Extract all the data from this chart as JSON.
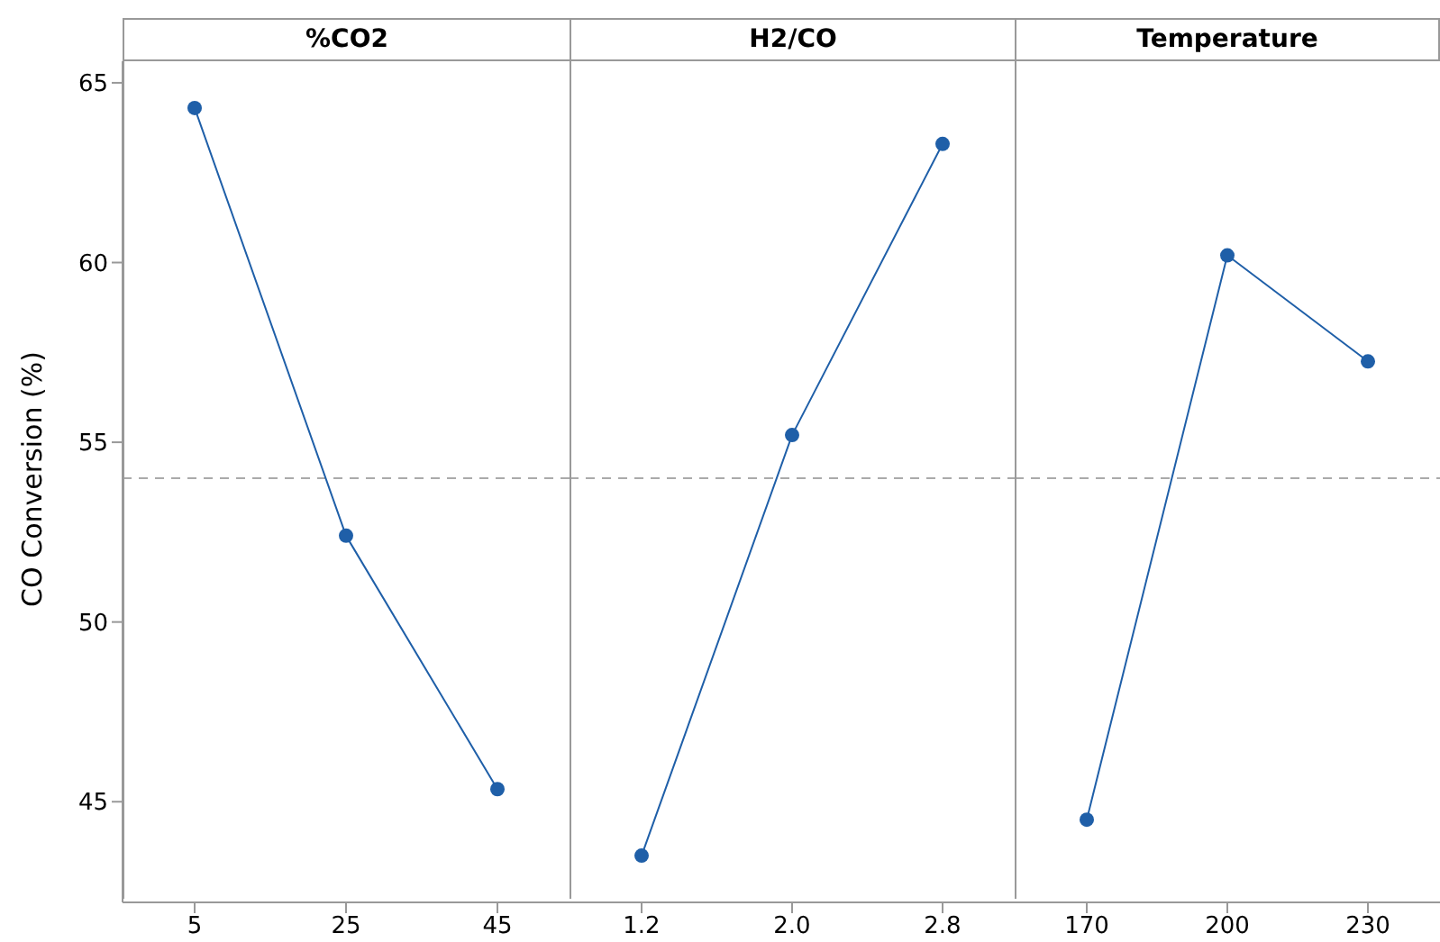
{
  "chart_data": [
    {
      "type": "line",
      "title": "%CO2",
      "ylabel": "CO Conversion (%)",
      "categories": [
        "5",
        "25",
        "45"
      ],
      "series": [
        {
          "color": "#1f5fa8",
          "values": [
            64.3,
            52.4,
            45.35
          ]
        }
      ],
      "ylim": [
        42.2,
        65.6
      ],
      "yticks": [
        45,
        50,
        55,
        60,
        65
      ],
      "ref_lines": [
        {
          "axis": "y",
          "value": 54.0,
          "color": "#aaaaaa",
          "line_style": "dashed"
        }
      ],
      "marker": "circle",
      "grid": false
    },
    {
      "type": "line",
      "title": "H2/CO",
      "categories": [
        "1.2",
        "2.0",
        "2.8"
      ],
      "series": [
        {
          "color": "#1f5fa8",
          "values": [
            43.5,
            55.2,
            63.3
          ]
        }
      ],
      "ylim": [
        42.2,
        65.6
      ],
      "tick_labels": "x",
      "ref_lines": [
        {
          "axis": "y",
          "value": 54.0,
          "color": "#aaaaaa",
          "line_style": "dashed"
        }
      ],
      "marker": "circle",
      "grid": false
    },
    {
      "type": "line",
      "title": "Temperature",
      "categories": [
        "170",
        "200",
        "230"
      ],
      "series": [
        {
          "color": "#1f5fa8",
          "values": [
            44.5,
            60.2,
            57.25
          ]
        }
      ],
      "ylim": [
        42.2,
        65.6
      ],
      "tick_labels": "x",
      "ref_lines": [
        {
          "axis": "y",
          "value": 54.0,
          "color": "#aaaaaa",
          "line_style": "dashed"
        }
      ],
      "marker": "circle",
      "grid": false
    }
  ]
}
